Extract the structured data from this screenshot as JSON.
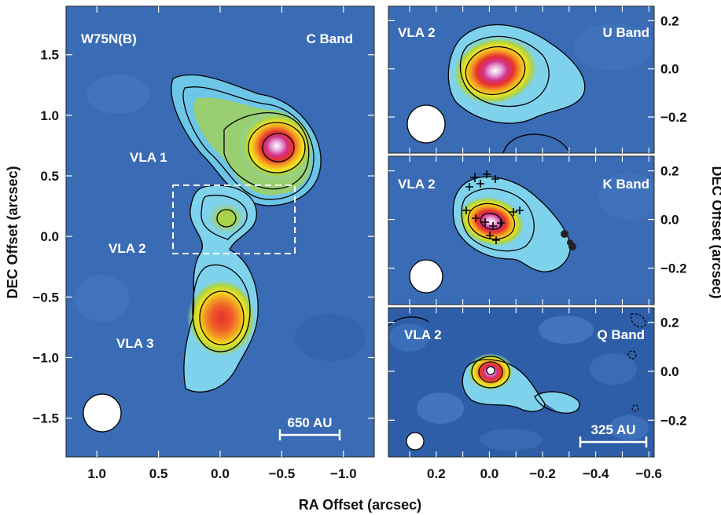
{
  "chart_data": [
    {
      "type": "heatmap",
      "panel": "left",
      "labels": {
        "field": "W75N(B)",
        "band": "C Band",
        "sources": [
          "VLA 1",
          "VLA 2",
          "VLA 3"
        ],
        "scalebar": "650 AU"
      },
      "xlim": [
        1.25,
        -1.25
      ],
      "ylim": [
        -1.82,
        1.9
      ],
      "x_ticks": [
        1.0,
        0.5,
        0.0,
        -0.5,
        -1.0
      ],
      "x_tick_labels": [
        "1.0",
        "0.5",
        "0.0",
        "−0.5",
        "−1.0"
      ],
      "y_ticks": [
        1.5,
        1.0,
        0.5,
        0.0,
        -0.5,
        -1.0,
        -1.5
      ],
      "y_tick_labels": [
        "1.5",
        "1.0",
        "0.5",
        "0.0",
        "−0.5",
        "−1.0",
        "−1.5"
      ],
      "sources": [
        {
          "name": "VLA 1",
          "x": -0.5,
          "y": 0.73
        },
        {
          "name": "VLA 2",
          "x": -0.1,
          "y": -0.05
        },
        {
          "name": "VLA 3",
          "x": 0.0,
          "y": -0.7
        }
      ],
      "zoom_box": {
        "x": [
          0.35,
          -0.65
        ],
        "y": [
          -0.32,
          0.25
        ]
      }
    },
    {
      "type": "heatmap",
      "panel": "right-top",
      "labels": {
        "source": "VLA 2",
        "band": "U Band"
      },
      "xlim": [
        0.38,
        -0.62
      ],
      "ylim": [
        -0.35,
        0.26
      ],
      "y_ticks": [
        0.2,
        0.0,
        -0.2
      ],
      "y_tick_labels": [
        "0.2",
        "0.0",
        "−0.2"
      ],
      "peak": {
        "x": 0.0,
        "y": 0.0
      }
    },
    {
      "type": "heatmap",
      "panel": "right-middle",
      "labels": {
        "source": "VLA 2",
        "band": "K Band"
      },
      "xlim": [
        0.38,
        -0.62
      ],
      "ylim": [
        -0.35,
        0.26
      ],
      "y_ticks": [
        0.2,
        0.0,
        -0.2
      ],
      "y_tick_labels": [
        "0.2",
        "0.0",
        "−0.2"
      ],
      "peak": {
        "x": 0.0,
        "y": 0.0
      }
    },
    {
      "type": "heatmap",
      "panel": "right-bottom",
      "labels": {
        "source": "VLA 2",
        "band": "Q Band",
        "scalebar": "325 AU"
      },
      "xlim": [
        0.38,
        -0.62
      ],
      "ylim": [
        -0.35,
        0.26
      ],
      "x_ticks": [
        0.2,
        0.0,
        -0.2,
        -0.4,
        -0.6
      ],
      "x_tick_labels": [
        "0.2",
        "0.0",
        "−0.2",
        "−0.4",
        "−0.6"
      ],
      "y_ticks": [
        0.2,
        0.0,
        -0.2
      ],
      "y_tick_labels": [
        "0.2",
        "0.0",
        "−0.2"
      ],
      "peak": {
        "x": 0.0,
        "y": 0.0
      }
    }
  ],
  "axes": {
    "xlabel": "RA Offset (arcsec)",
    "ylabel_left": "DEC Offset (arcsec)",
    "ylabel_right": "DEC Offset (arcsec)"
  },
  "colors": {
    "background_blue": "#3a6bb5",
    "cyan": "#7fd2ec",
    "green": "#a8d24a",
    "yellow": "#f4e41c",
    "orange": "#f39a24",
    "red": "#e6332a",
    "magenta": "#d2328c",
    "white": "#ffffff"
  }
}
